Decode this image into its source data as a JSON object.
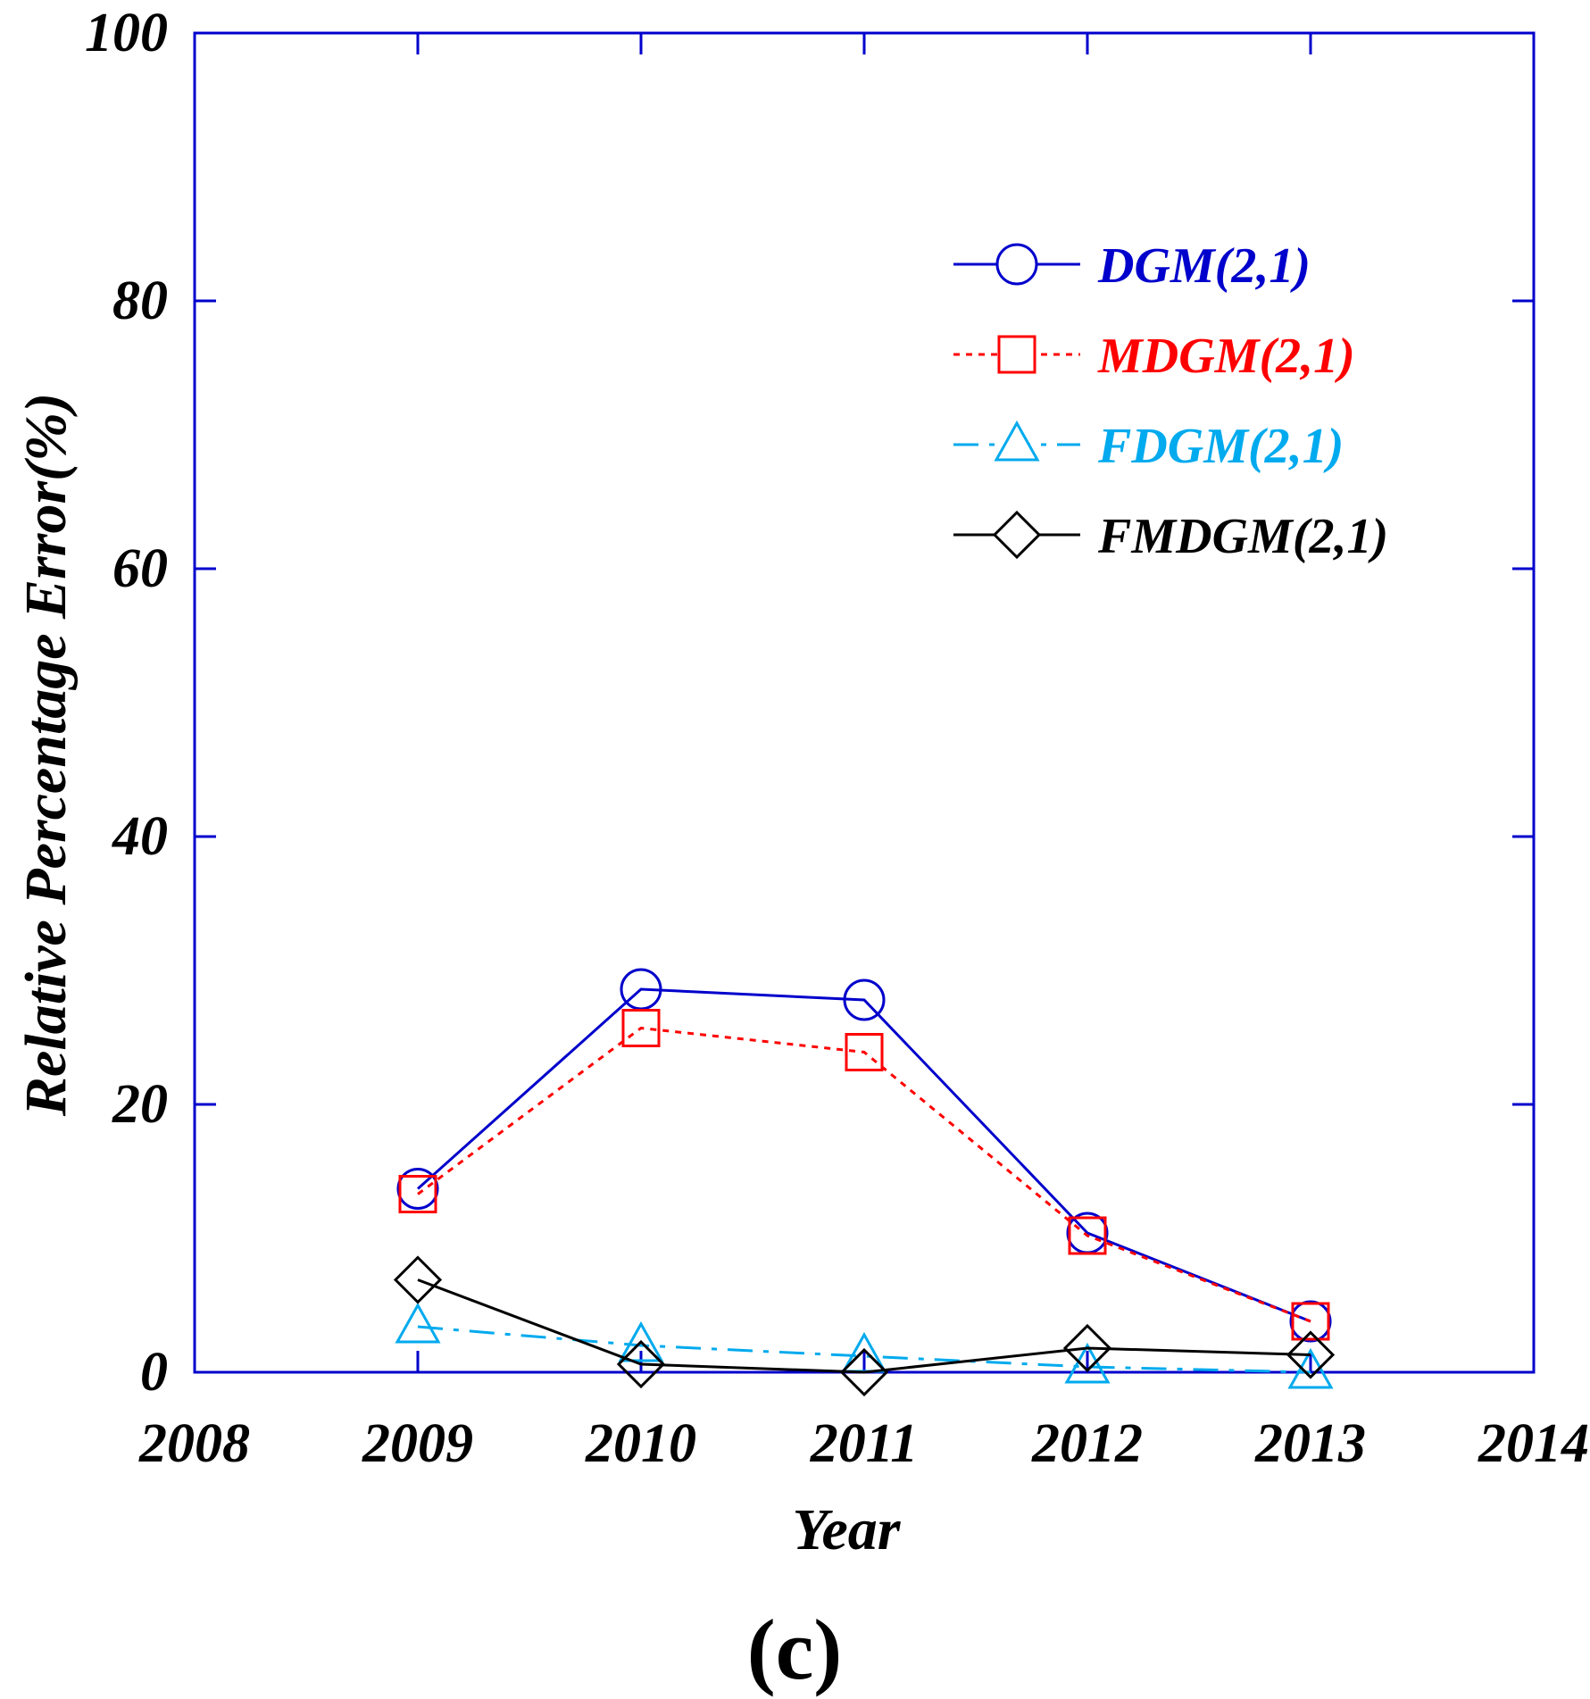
{
  "chart_data": {
    "type": "line",
    "panel_label": "(c)",
    "xlabel": "Year",
    "ylabel": "Relative Percentage Error(%)",
    "xlim": [
      2008,
      2014
    ],
    "ylim": [
      0,
      100
    ],
    "x_ticks": [
      "2008",
      "2009",
      "2010",
      "2011",
      "2012",
      "2013",
      "2014"
    ],
    "y_ticks": [
      "0",
      "20",
      "40",
      "60",
      "80",
      "100"
    ],
    "legend_position": "top-right",
    "axis_color": "#0000cc",
    "series": [
      {
        "name": "DGM(2,1)",
        "color": "#0000cc",
        "marker": "circle",
        "line": "solid",
        "x": [
          2009,
          2010,
          2011,
          2012,
          2013
        ],
        "values": [
          13.7,
          28.6,
          27.8,
          10.4,
          3.8
        ]
      },
      {
        "name": "MDGM(2,1)",
        "color": "#ff0000",
        "marker": "square",
        "line": "dotted",
        "x": [
          2009,
          2010,
          2011,
          2012,
          2013
        ],
        "values": [
          13.3,
          25.7,
          23.9,
          10.2,
          3.8
        ]
      },
      {
        "name": "FDGM(2,1)",
        "color": "#00aaee",
        "marker": "triangle",
        "line": "dashdot",
        "x": [
          2009,
          2010,
          2011,
          2012,
          2013
        ],
        "values": [
          3.4,
          2.0,
          1.2,
          0.4,
          0.0
        ]
      },
      {
        "name": "FMDGM(2,1)",
        "color": "#000000",
        "marker": "diamond",
        "line": "solid",
        "x": [
          2009,
          2010,
          2011,
          2012,
          2013
        ],
        "values": [
          6.9,
          0.6,
          0.0,
          1.8,
          1.3
        ]
      }
    ]
  }
}
